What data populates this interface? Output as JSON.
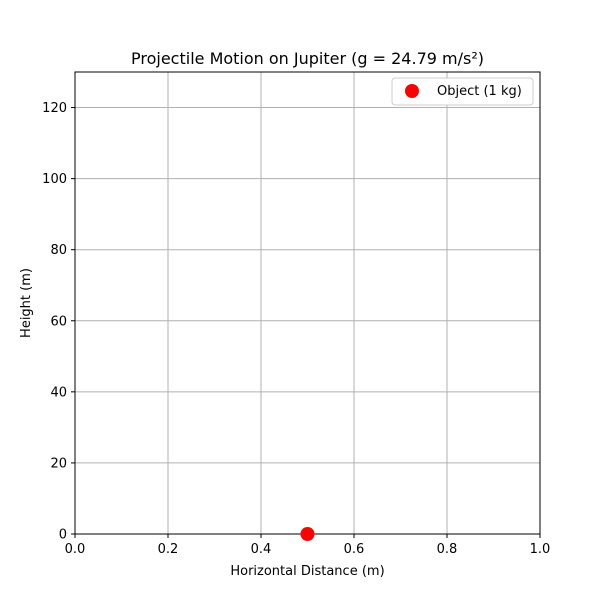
{
  "chart_data": {
    "type": "scatter",
    "title": "Projectile Motion on Jupiter (g = 24.79 m/s²)",
    "xlabel": "Horizontal Distance (m)",
    "ylabel": "Height (m)",
    "xlim": [
      0,
      1
    ],
    "ylim": [
      0,
      130
    ],
    "xticks": [
      0.0,
      0.2,
      0.4,
      0.6,
      0.8,
      1.0
    ],
    "xtick_labels": [
      "0.0",
      "0.2",
      "0.4",
      "0.6",
      "0.8",
      "1.0"
    ],
    "yticks": [
      0,
      20,
      40,
      60,
      80,
      100,
      120
    ],
    "ytick_labels": [
      "0",
      "20",
      "40",
      "60",
      "80",
      "100",
      "120"
    ],
    "grid": true,
    "legend_position": "top-right",
    "series": [
      {
        "name": "Object (1 kg)",
        "color": "#ff0000",
        "marker": "circle",
        "points": [
          {
            "x": 0.5,
            "y": 0
          }
        ]
      }
    ]
  }
}
